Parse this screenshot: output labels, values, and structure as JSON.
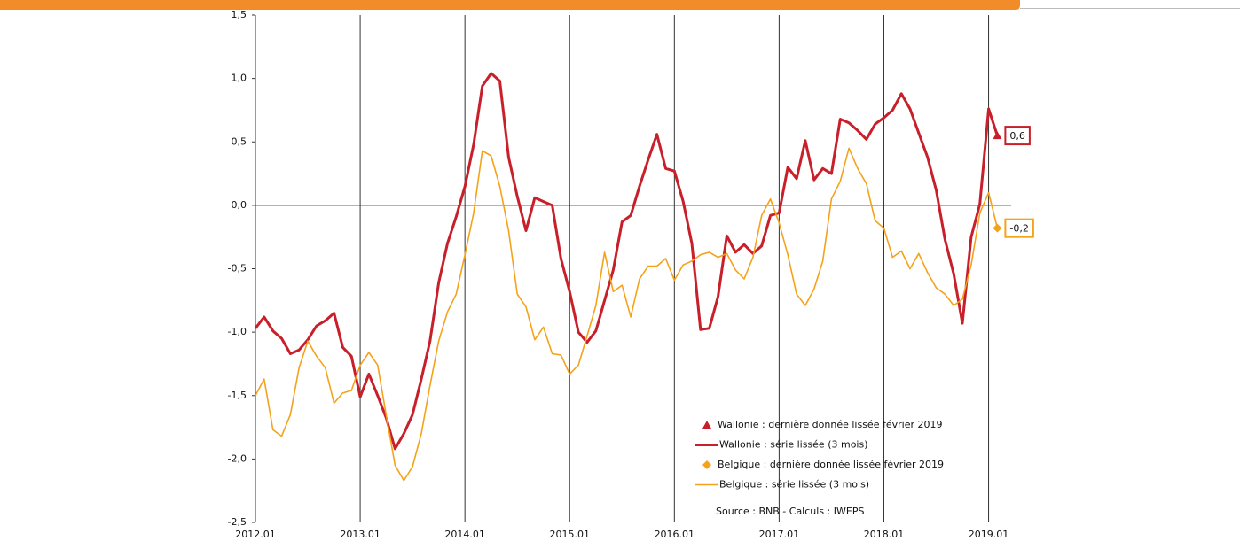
{
  "chart_data": {
    "type": "line",
    "categories": [
      "2012.01",
      null,
      null,
      null,
      null,
      null,
      null,
      null,
      null,
      null,
      null,
      null,
      "2013.01",
      null,
      null,
      null,
      null,
      null,
      null,
      null,
      null,
      null,
      null,
      null,
      "2014.01",
      null,
      null,
      null,
      null,
      null,
      null,
      null,
      null,
      null,
      null,
      null,
      "2015.01",
      null,
      null,
      null,
      null,
      null,
      null,
      null,
      null,
      null,
      null,
      null,
      "2016.01",
      null,
      null,
      null,
      null,
      null,
      null,
      null,
      null,
      null,
      null,
      null,
      "2017.01",
      null,
      null,
      null,
      null,
      null,
      null,
      null,
      null,
      null,
      null,
      null,
      "2018.01",
      null,
      null,
      null,
      null,
      null,
      null,
      null,
      null,
      null,
      null,
      null,
      "2019.01",
      null
    ],
    "ylim": [
      -2.5,
      1.5
    ],
    "yticks": [
      {
        "value": 1.5,
        "label": "1,5"
      },
      {
        "value": 1.0,
        "label": "1,0"
      },
      {
        "value": 0.5,
        "label": "0,5"
      },
      {
        "value": 0,
        "label": "0,0"
      },
      {
        "value": -0.5,
        "label": "-0,5"
      },
      {
        "value": -1.0,
        "label": "-1,0"
      },
      {
        "value": -1.5,
        "label": "-1,5"
      },
      {
        "value": -2.0,
        "label": "-2,0"
      },
      {
        "value": -2.5,
        "label": "-2,5"
      }
    ],
    "series": [
      {
        "name": "Wallonie : dernière donnée lissée février 2019",
        "color": "#c8202a",
        "marker": "triangle",
        "values": [
          null,
          null,
          null,
          null,
          null,
          null,
          null,
          null,
          null,
          null,
          null,
          null,
          null,
          null,
          null,
          null,
          null,
          null,
          null,
          null,
          null,
          null,
          null,
          null,
          null,
          null,
          null,
          null,
          null,
          null,
          null,
          null,
          null,
          null,
          null,
          null,
          null,
          null,
          null,
          null,
          null,
          null,
          null,
          null,
          null,
          null,
          null,
          null,
          null,
          null,
          null,
          null,
          null,
          null,
          null,
          null,
          null,
          null,
          null,
          null,
          null,
          null,
          null,
          null,
          null,
          null,
          null,
          null,
          null,
          null,
          null,
          null,
          null,
          null,
          null,
          null,
          null,
          null,
          null,
          null,
          null,
          null,
          null,
          null,
          null,
          0.55
        ],
        "value_labels": [
          null,
          null,
          null,
          null,
          null,
          null,
          null,
          null,
          null,
          null,
          null,
          null,
          null,
          null,
          null,
          null,
          null,
          null,
          null,
          null,
          null,
          null,
          null,
          null,
          null,
          null,
          null,
          null,
          null,
          null,
          null,
          null,
          null,
          null,
          null,
          null,
          null,
          null,
          null,
          null,
          null,
          null,
          null,
          null,
          null,
          null,
          null,
          null,
          null,
          null,
          null,
          null,
          null,
          null,
          null,
          null,
          null,
          null,
          null,
          null,
          null,
          null,
          null,
          null,
          null,
          null,
          null,
          null,
          null,
          null,
          null,
          null,
          null,
          null,
          null,
          null,
          null,
          null,
          null,
          null,
          null,
          null,
          null,
          null,
          null,
          "0,6"
        ]
      },
      {
        "name": "Wallonie : série lissée (3 mois)",
        "color": "#c8202a",
        "width": 3,
        "values": [
          -0.97,
          -0.88,
          -0.99,
          -1.05,
          -1.17,
          -1.14,
          -1.06,
          -0.95,
          -0.91,
          -0.85,
          -1.12,
          -1.19,
          -1.51,
          -1.33,
          -1.5,
          -1.68,
          -1.92,
          -1.8,
          -1.65,
          -1.37,
          -1.07,
          -0.61,
          -0.3,
          -0.09,
          0.15,
          0.48,
          0.94,
          1.04,
          0.98,
          0.38,
          0.07,
          -0.2,
          0.06,
          0.03,
          0.0,
          -0.42,
          -0.68,
          -1.0,
          -1.08,
          -0.99,
          -0.75,
          -0.51,
          -0.13,
          -0.08,
          0.15,
          0.36,
          0.56,
          0.29,
          0.27,
          0.03,
          -0.3,
          -0.98,
          -0.97,
          -0.72,
          -0.24,
          -0.37,
          -0.31,
          -0.38,
          -0.32,
          -0.08,
          -0.06,
          0.3,
          0.21,
          0.51,
          0.2,
          0.29,
          0.25,
          0.68,
          0.65,
          0.59,
          0.52,
          0.64,
          0.69,
          0.75,
          0.88,
          0.76,
          0.57,
          0.38,
          0.12,
          -0.27,
          -0.54,
          -0.93,
          -0.25,
          0.01,
          0.76,
          0.55
        ]
      },
      {
        "name": "Belgique : dernière donnée lissée février 2019",
        "color": "#f5a21b",
        "marker": "diamond",
        "values": [
          null,
          null,
          null,
          null,
          null,
          null,
          null,
          null,
          null,
          null,
          null,
          null,
          null,
          null,
          null,
          null,
          null,
          null,
          null,
          null,
          null,
          null,
          null,
          null,
          null,
          null,
          null,
          null,
          null,
          null,
          null,
          null,
          null,
          null,
          null,
          null,
          null,
          null,
          null,
          null,
          null,
          null,
          null,
          null,
          null,
          null,
          null,
          null,
          null,
          null,
          null,
          null,
          null,
          null,
          null,
          null,
          null,
          null,
          null,
          null,
          null,
          null,
          null,
          null,
          null,
          null,
          null,
          null,
          null,
          null,
          null,
          null,
          null,
          null,
          null,
          null,
          null,
          null,
          null,
          null,
          null,
          null,
          null,
          null,
          null,
          -0.18
        ],
        "value_labels": [
          null,
          null,
          null,
          null,
          null,
          null,
          null,
          null,
          null,
          null,
          null,
          null,
          null,
          null,
          null,
          null,
          null,
          null,
          null,
          null,
          null,
          null,
          null,
          null,
          null,
          null,
          null,
          null,
          null,
          null,
          null,
          null,
          null,
          null,
          null,
          null,
          null,
          null,
          null,
          null,
          null,
          null,
          null,
          null,
          null,
          null,
          null,
          null,
          null,
          null,
          null,
          null,
          null,
          null,
          null,
          null,
          null,
          null,
          null,
          null,
          null,
          null,
          null,
          null,
          null,
          null,
          null,
          null,
          null,
          null,
          null,
          null,
          null,
          null,
          null,
          null,
          null,
          null,
          null,
          null,
          null,
          null,
          null,
          null,
          null,
          "-0,2"
        ]
      },
      {
        "name": "Belgique : série lissée (3 mois)",
        "color": "#f5a21b",
        "width": 1.6,
        "values": [
          -1.5,
          -1.37,
          -1.77,
          -1.82,
          -1.65,
          -1.28,
          -1.07,
          -1.19,
          -1.28,
          -1.56,
          -1.48,
          -1.46,
          -1.26,
          -1.16,
          -1.26,
          -1.66,
          -2.05,
          -2.17,
          -2.06,
          -1.8,
          -1.42,
          -1.07,
          -0.84,
          -0.7,
          -0.39,
          -0.06,
          0.43,
          0.39,
          0.15,
          -0.2,
          -0.7,
          -0.8,
          -1.06,
          -0.96,
          -1.17,
          -1.18,
          -1.33,
          -1.26,
          -1.03,
          -0.79,
          -0.37,
          -0.68,
          -0.63,
          -0.88,
          -0.58,
          -0.48,
          -0.48,
          -0.42,
          -0.59,
          -0.47,
          -0.44,
          -0.39,
          -0.37,
          -0.41,
          -0.38,
          -0.51,
          -0.58,
          -0.41,
          -0.08,
          0.05,
          -0.14,
          -0.39,
          -0.7,
          -0.79,
          -0.66,
          -0.44,
          0.05,
          0.19,
          0.45,
          0.29,
          0.17,
          -0.12,
          -0.18,
          -0.41,
          -0.36,
          -0.5,
          -0.38,
          -0.53,
          -0.65,
          -0.7,
          -0.79,
          -0.74,
          -0.47,
          -0.06,
          0.1,
          -0.18
        ]
      }
    ],
    "source": "Source : BNB - Calculs : IWEPS"
  }
}
